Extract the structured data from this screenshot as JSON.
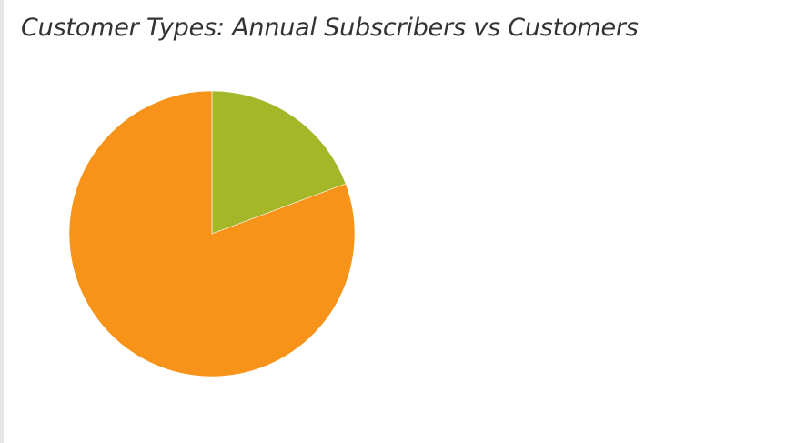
{
  "title": "Customer Types: Annual Subscribers vs Customers",
  "chart_data": {
    "type": "pie",
    "title": "Customer Types: Annual Subscribers vs Customers",
    "legend": "none",
    "start_angle_deg": 0,
    "direction": "clockwise",
    "slices": [
      {
        "value": 19.3,
        "color": "#a3b728"
      },
      {
        "value": 80.7,
        "color": "#f79318"
      }
    ]
  }
}
